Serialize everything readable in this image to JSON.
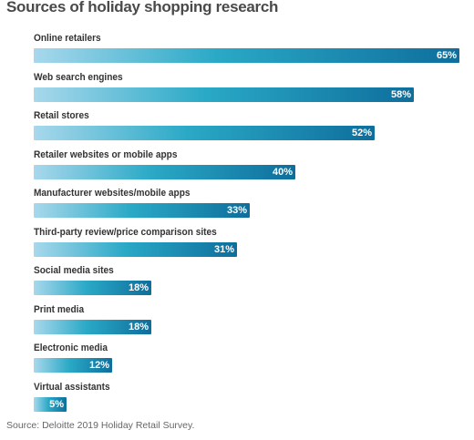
{
  "chart_data": {
    "type": "bar",
    "orientation": "horizontal",
    "title": "Sources of holiday shopping research",
    "categories": [
      "Online retailers",
      "Web search engines",
      "Retail stores",
      "Retailer websites or mobile apps",
      "Manufacturer websites/mobile apps",
      "Third-party review/price comparison sites",
      "Social media sites",
      "Print media",
      "Electronic media",
      "Virtual assistants"
    ],
    "values": [
      65,
      58,
      52,
      40,
      33,
      31,
      18,
      18,
      12,
      5
    ],
    "value_labels": [
      "65%",
      "58%",
      "52%",
      "40%",
      "33%",
      "31%",
      "18%",
      "18%",
      "12%",
      "5%"
    ],
    "unit": "%",
    "xlim": [
      0,
      65
    ],
    "grid": false,
    "source": "Source: Deloitte 2019 Holiday Retail Survey.",
    "colors": {
      "bar_start": "#a8d8ec",
      "bar_mid": "#2aa9c6",
      "bar_end": "#0e6e9c",
      "label": "#333333",
      "value_text": "#ffffff"
    }
  }
}
